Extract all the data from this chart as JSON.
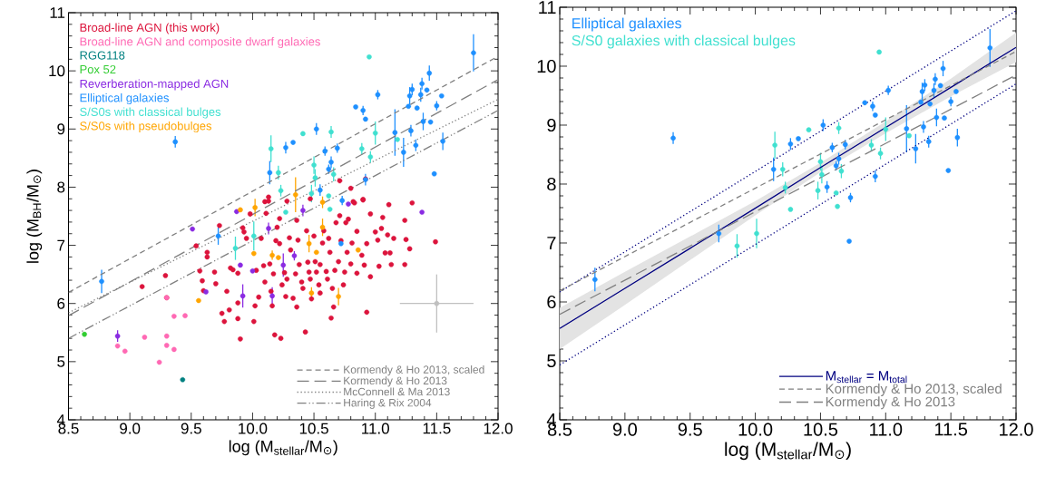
{
  "chart_data": [
    {
      "type": "scatter",
      "xlabel": "log (M$_{stellar}$/M$_{⊙}$)",
      "ylabel": "log (M$_{BH}$/M$_{⊙}$)",
      "xlim": [
        8.5,
        12.0
      ],
      "ylim": [
        4,
        11
      ],
      "xticks": [
        8.5,
        {
          "value": 9,
          "label": "9.0"
        },
        9.5,
        {
          "value": 10,
          "label": "10.0"
        },
        10.5,
        {
          "value": 11,
          "label": "11.0"
        },
        11.5,
        {
          "value": 12,
          "label": "12.0"
        }
      ],
      "yticks": [
        4,
        5,
        6,
        7,
        8,
        9,
        10,
        11
      ],
      "legend": "bottom right",
      "series": [
        {
          "name": "Broad-line AGN (this work)",
          "color": "#dc143c",
          "marker": "circle",
          "x": [
            9.1,
            9.29,
            9.3,
            9.54,
            9.57,
            9.59,
            9.6,
            9.63,
            9.63,
            9.69,
            9.7,
            9.73,
            9.75,
            9.77,
            9.79,
            9.81,
            9.82,
            9.84,
            9.88,
            9.88,
            9.88,
            9.9,
            9.92,
            9.93,
            9.95,
            9.98,
            10.01,
            10.02,
            10.03,
            10.05,
            10.07,
            10.09,
            10.1,
            10.11,
            10.13,
            10.14,
            10.15,
            10.16,
            10.17,
            10.18,
            10.19,
            10.2,
            10.22,
            10.23,
            10.24,
            10.26,
            10.27,
            10.28,
            10.3,
            10.31,
            10.33,
            10.35,
            10.36,
            10.37,
            10.38,
            10.4,
            10.41,
            10.43,
            10.44,
            10.45,
            10.46,
            10.47,
            10.48,
            10.5,
            10.51,
            10.52,
            10.54,
            10.55,
            10.55,
            10.57,
            10.58,
            10.6,
            10.61,
            10.62,
            10.63,
            10.64,
            10.65,
            10.66,
            10.67,
            10.68,
            10.7,
            10.71,
            10.72,
            10.74,
            10.75,
            10.76,
            10.77,
            10.78,
            10.8,
            10.81,
            10.83,
            10.85,
            10.85,
            10.89,
            10.9,
            10.91,
            10.93,
            10.96,
            10.96,
            10.93,
            11.0,
            11.02,
            11.03,
            11.06,
            11.08,
            11.1,
            11.11,
            11.12,
            11.13,
            11.24,
            11.25,
            11.28,
            11.3,
            11.49,
            11.24,
            11.05,
            11.15,
            10.92,
            10.71,
            10.8,
            10.13,
            10.1,
            10.28,
            10.47,
            10.9,
            10.82,
            10.36,
            10.22
          ],
          "values": [
            6.29,
            6.48,
            6.1,
            6.99,
            6.56,
            6.39,
            6.22,
            6.88,
            6.8,
            6.54,
            6.34,
            7.34,
            5.83,
            5.69,
            6.21,
            5.89,
            6.61,
            6.58,
            6.52,
            6.01,
            5.74,
            5.39,
            7.3,
            7.23,
            7.12,
            7.54,
            5.69,
            5.96,
            6.57,
            6.11,
            7.12,
            6.65,
            6.37,
            7.55,
            7.83,
            6.68,
            6.21,
            5.96,
            6.51,
            5.46,
            7.08,
            7.31,
            7.03,
            5.4,
            6.32,
            6.53,
            6.12,
            6.42,
            7.13,
            6.92,
            6.09,
            6.51,
            5.94,
            7.09,
            6.67,
            6.37,
            6.26,
            5.51,
            7.25,
            6.71,
            6.54,
            6.42,
            6.08,
            7.16,
            6.72,
            6.54,
            6.32,
            6.67,
            6.18,
            7.04,
            7.25,
            6.55,
            6.42,
            7.12,
            6.88,
            5.75,
            6.26,
            5.94,
            6.57,
            7.39,
            6.72,
            7.51,
            7.08,
            6.32,
            6.54,
            7.39,
            6.88,
            7.45,
            6.68,
            7.04,
            7.73,
            6.52,
            7.24,
            6.83,
            7.78,
            6.66,
            7.03,
            7.54,
            6.46,
            5.85,
            7.23,
            7.09,
            6.64,
            7.48,
            6.87,
            7.18,
            7.7,
            6.87,
            6.67,
            6.67,
            7.1,
            6.94,
            7.73,
            7.06,
            7.43,
            7.29,
            7.12,
            8.14,
            8.11,
            7.98,
            7.76,
            7.75,
            7.76,
            7.8,
            7.79,
            7.75,
            7.43,
            7.46
          ]
        },
        {
          "name": "Broad-line AGN and composite dwarf galaxies",
          "color": "#ff69b4",
          "marker": "circle",
          "x": [
            9.3,
            9.36,
            9.45,
            9.12,
            9.3,
            9.3,
            9.36,
            8.96,
            8.9,
            9.24
          ],
          "values": [
            6.1,
            5.78,
            5.79,
            5.42,
            5.44,
            5.28,
            5.21,
            5.18,
            5.27,
            4.99
          ]
        },
        {
          "name": "RGG118",
          "color": "#008080",
          "marker": "circle",
          "x": [
            9.43
          ],
          "values": [
            4.69
          ]
        },
        {
          "name": "Pox 52",
          "color": "#32cd32",
          "marker": "circle",
          "x": [
            8.63
          ],
          "values": [
            5.47
          ]
        },
        {
          "name": "Reverberation-mapped AGN",
          "color": "#8a2be2",
          "marker": "circle",
          "x": [
            9.87,
            10.41,
            10.78,
            11.38,
            9.51,
            10.13,
            9.9,
            10.0,
            10.34,
            10.25,
            9.62,
            9.92,
            10.16,
            8.9
          ],
          "values": [
            7.58,
            7.6,
            7.71,
            7.57,
            7.28,
            7.29,
            6.66,
            6.56,
            6.82,
            6.66,
            6.2,
            6.13,
            6.13,
            5.44
          ],
          "errors": [
            null,
            0.1,
            null,
            null,
            null,
            0.1,
            null,
            null,
            0.08,
            0.2,
            null,
            0.2,
            0.15,
            0.1
          ]
        },
        {
          "name": "Elliptical galaxies",
          "color": "#1e90ff",
          "marker": "circle",
          "x": [
            11.8,
            11.44,
            11.38,
            11.3,
            11.28,
            11.37,
            11.42,
            11.02,
            11.54,
            11.5,
            11.27,
            11.34,
            10.84,
            10.9,
            10.92,
            11.39,
            11.45,
            10.52,
            11.16,
            11.29,
            10.27,
            10.33,
            9.37,
            10.59,
            10.69,
            11.33,
            11.55,
            11.23,
            10.64,
            10.62,
            10.14,
            10.92,
            11.48,
            10.55,
            10.73,
            9.72,
            8.77,
            10.72
          ],
          "values": [
            10.31,
            9.96,
            9.78,
            9.68,
            9.57,
            9.59,
            9.67,
            9.59,
            9.57,
            9.4,
            9.39,
            9.36,
            9.38,
            9.32,
            9.17,
            9.13,
            9.12,
            9.0,
            8.94,
            8.97,
            8.68,
            8.77,
            8.78,
            8.62,
            8.67,
            8.72,
            8.79,
            8.6,
            8.43,
            8.31,
            8.25,
            8.13,
            8.23,
            7.95,
            7.77,
            7.16,
            6.38,
            7.03
          ],
          "errors": [
            0.32,
            0.13,
            0.1,
            0.1,
            0.15,
            0.12,
            null,
            0.08,
            null,
            0.08,
            null,
            null,
            null,
            0.08,
            null,
            0.15,
            null,
            0.1,
            0.4,
            0.1,
            0.1,
            null,
            0.1,
            0.08,
            0.08,
            0.1,
            0.15,
            0.25,
            0.1,
            0.08,
            0.2,
            0.1,
            null,
            0.1,
            0.08,
            0.15,
            0.2,
            null
          ]
        },
        {
          "name": "S/S0s with classical bulges",
          "color": "#40e0d0",
          "marker": "circle",
          "x": [
            10.95,
            10.15,
            10.41,
            10.64,
            11.0,
            11.18,
            10.89,
            10.96,
            10.21,
            10.5,
            10.51,
            10.66,
            10.23,
            10.48,
            10.62,
            10.27,
            10.63,
            9.86,
            10.01
          ],
          "values": [
            10.24,
            8.66,
            8.92,
            8.95,
            8.93,
            8.82,
            8.66,
            8.52,
            8.25,
            8.38,
            8.16,
            8.22,
            7.94,
            7.89,
            7.85,
            7.57,
            7.62,
            6.95,
            7.16
          ],
          "errors": [
            null,
            0.23,
            null,
            0.1,
            0.2,
            null,
            0.1,
            0.1,
            0.12,
            0.15,
            0.15,
            0.12,
            0.1,
            0.15,
            null,
            null,
            null,
            0.2,
            0.25
          ]
        },
        {
          "name": "S/S0s with pseudobulges",
          "color": "#ffa500",
          "marker": "circle",
          "x": [
            10.35,
            10.57,
            9.9,
            10.02,
            10.57,
            10.46,
            10.52,
            10.01,
            10.16,
            10.21,
            10.86,
            10.48,
            10.7,
            9.56
          ],
          "values": [
            7.87,
            7.74,
            7.61,
            7.65,
            7.31,
            7.03,
            6.88,
            6.86,
            6.83,
            6.79,
            6.92,
            6.18,
            6.12,
            6.05
          ],
          "errors": [
            0.3,
            0.1,
            null,
            0.15,
            0.15,
            0.15,
            null,
            null,
            0.08,
            null,
            null,
            0.1,
            0.15,
            null
          ]
        },
        {
          "color": "#c0c0c0",
          "marker": "circle",
          "x": [
            11.5
          ],
          "values": [
            6.0
          ],
          "errors": [
            0.5
          ],
          "xerrors": [
            0.3
          ]
        },
        {
          "type": "line",
          "name": "Kormendy & Ho 2013, scaled",
          "color": "#808080",
          "line_style": "dashed",
          "x": [
            8.5,
            12.0
          ],
          "values": [
            6.19,
            10.25
          ]
        },
        {
          "type": "line",
          "name": "Kormendy & Ho 2013",
          "color": "#808080",
          "line_style": "long dashed",
          "x": [
            8.5,
            12.0
          ],
          "values": [
            5.79,
            9.85
          ]
        },
        {
          "type": "line",
          "name": "McConnell & Ma 2013",
          "color": "#808080",
          "line_style": "dotted",
          "x": [
            8.5,
            12.0
          ],
          "values": [
            5.84,
            9.51
          ]
        },
        {
          "type": "line",
          "name": "Haring & Rix 2004",
          "color": "#808080",
          "line_style": "dashdotdotted",
          "x": [
            8.5,
            12.0
          ],
          "values": [
            5.4,
            9.32
          ]
        }
      ]
    },
    {
      "type": "scatter",
      "xlabel": "log (M$_{stellar}$/M$_{⊙}$)",
      "xlim": [
        8.5,
        12.0
      ],
      "ylim": [
        4,
        11
      ],
      "xticks": [
        8.5,
        {
          "value": 9,
          "label": "9.0"
        },
        9.5,
        {
          "value": 10,
          "label": "10.0"
        },
        10.5,
        {
          "value": 11,
          "label": "11.0"
        },
        11.5,
        {
          "value": 12,
          "label": "12.0"
        }
      ],
      "yticks": [
        4,
        5,
        6,
        7,
        8,
        9,
        10,
        11
      ],
      "legend": "bottom right",
      "series": [
        {
          "name": "Elliptical galaxies",
          "color": "#1e90ff",
          "marker": "circle",
          "x": [
            11.8,
            11.44,
            11.38,
            11.3,
            11.28,
            11.37,
            11.42,
            11.02,
            11.54,
            11.5,
            11.27,
            11.34,
            10.84,
            10.9,
            10.92,
            11.39,
            11.45,
            10.52,
            11.16,
            11.29,
            10.27,
            10.33,
            9.37,
            10.59,
            10.69,
            11.33,
            11.55,
            11.23,
            10.64,
            10.62,
            10.14,
            10.92,
            11.48,
            10.55,
            10.73,
            9.72,
            8.77,
            10.72
          ],
          "values": [
            10.31,
            9.96,
            9.78,
            9.68,
            9.57,
            9.59,
            9.67,
            9.59,
            9.57,
            9.4,
            9.39,
            9.36,
            9.38,
            9.32,
            9.17,
            9.13,
            9.12,
            9.0,
            8.94,
            8.97,
            8.68,
            8.77,
            8.78,
            8.62,
            8.67,
            8.72,
            8.79,
            8.6,
            8.43,
            8.31,
            8.25,
            8.13,
            8.23,
            7.95,
            7.77,
            7.16,
            6.38,
            7.03
          ],
          "errors": [
            0.32,
            0.13,
            0.1,
            0.1,
            0.15,
            0.12,
            null,
            0.08,
            null,
            0.08,
            null,
            null,
            null,
            0.08,
            null,
            0.15,
            null,
            0.1,
            0.4,
            0.1,
            0.1,
            null,
            0.1,
            0.08,
            0.08,
            0.1,
            0.15,
            0.25,
            0.1,
            0.08,
            0.2,
            0.1,
            null,
            0.1,
            0.08,
            0.15,
            0.2,
            null
          ]
        },
        {
          "name": "S/S0 galaxies with classical bulges",
          "color": "#40e0d0",
          "marker": "circle",
          "x": [
            10.95,
            10.15,
            10.41,
            10.64,
            11.0,
            11.18,
            10.89,
            10.96,
            10.21,
            10.5,
            10.51,
            10.66,
            10.23,
            10.48,
            10.62,
            10.27,
            10.63,
            9.86,
            10.01
          ],
          "values": [
            10.24,
            8.66,
            8.92,
            8.95,
            8.93,
            8.82,
            8.66,
            8.52,
            8.25,
            8.38,
            8.16,
            8.22,
            7.94,
            7.89,
            7.85,
            7.57,
            7.62,
            6.95,
            7.16
          ],
          "errors": [
            null,
            0.23,
            null,
            0.1,
            0.2,
            null,
            0.1,
            0.1,
            0.12,
            0.15,
            0.15,
            0.12,
            0.1,
            0.15,
            null,
            null,
            null,
            0.2,
            0.25
          ]
        },
        {
          "type": "line",
          "color": "#000080",
          "line_style": "dotted",
          "x": [
            8.5,
            12.0
          ],
          "values": [
            6.17,
            10.94
          ]
        },
        {
          "type": "line",
          "color": "#000080",
          "line_style": "dotted",
          "x": [
            8.5,
            12.0
          ],
          "values": [
            4.93,
            9.7
          ]
        },
        {
          "type": "line",
          "name": "M$_{stellar}$ = M$_{total}$",
          "color": "#000080",
          "line_style": "solid",
          "x": [
            8.5,
            9.0,
            9.5,
            10.0,
            10.5,
            11.0,
            11.5,
            12.0
          ],
          "values": [
            5.55,
            6.23,
            6.91,
            7.59,
            8.28,
            8.96,
            9.64,
            10.32
          ],
          "lower": [
            5.2,
            5.95,
            6.71,
            7.47,
            8.2,
            8.86,
            9.49,
            10.07
          ],
          "upper": [
            5.9,
            6.51,
            7.11,
            7.71,
            8.36,
            9.06,
            9.79,
            10.57
          ]
        },
        {
          "type": "line",
          "name": "Kormendy & Ho 2013, scaled",
          "color": "#808080",
          "line_style": "dashed",
          "x": [
            8.5,
            12.0
          ],
          "values": [
            6.19,
            10.25
          ]
        },
        {
          "type": "line",
          "name": "Kormendy & Ho 2013",
          "color": "#808080",
          "line_style": "long dashed",
          "x": [
            8.5,
            12.0
          ],
          "values": [
            5.79,
            9.85
          ]
        }
      ]
    }
  ]
}
